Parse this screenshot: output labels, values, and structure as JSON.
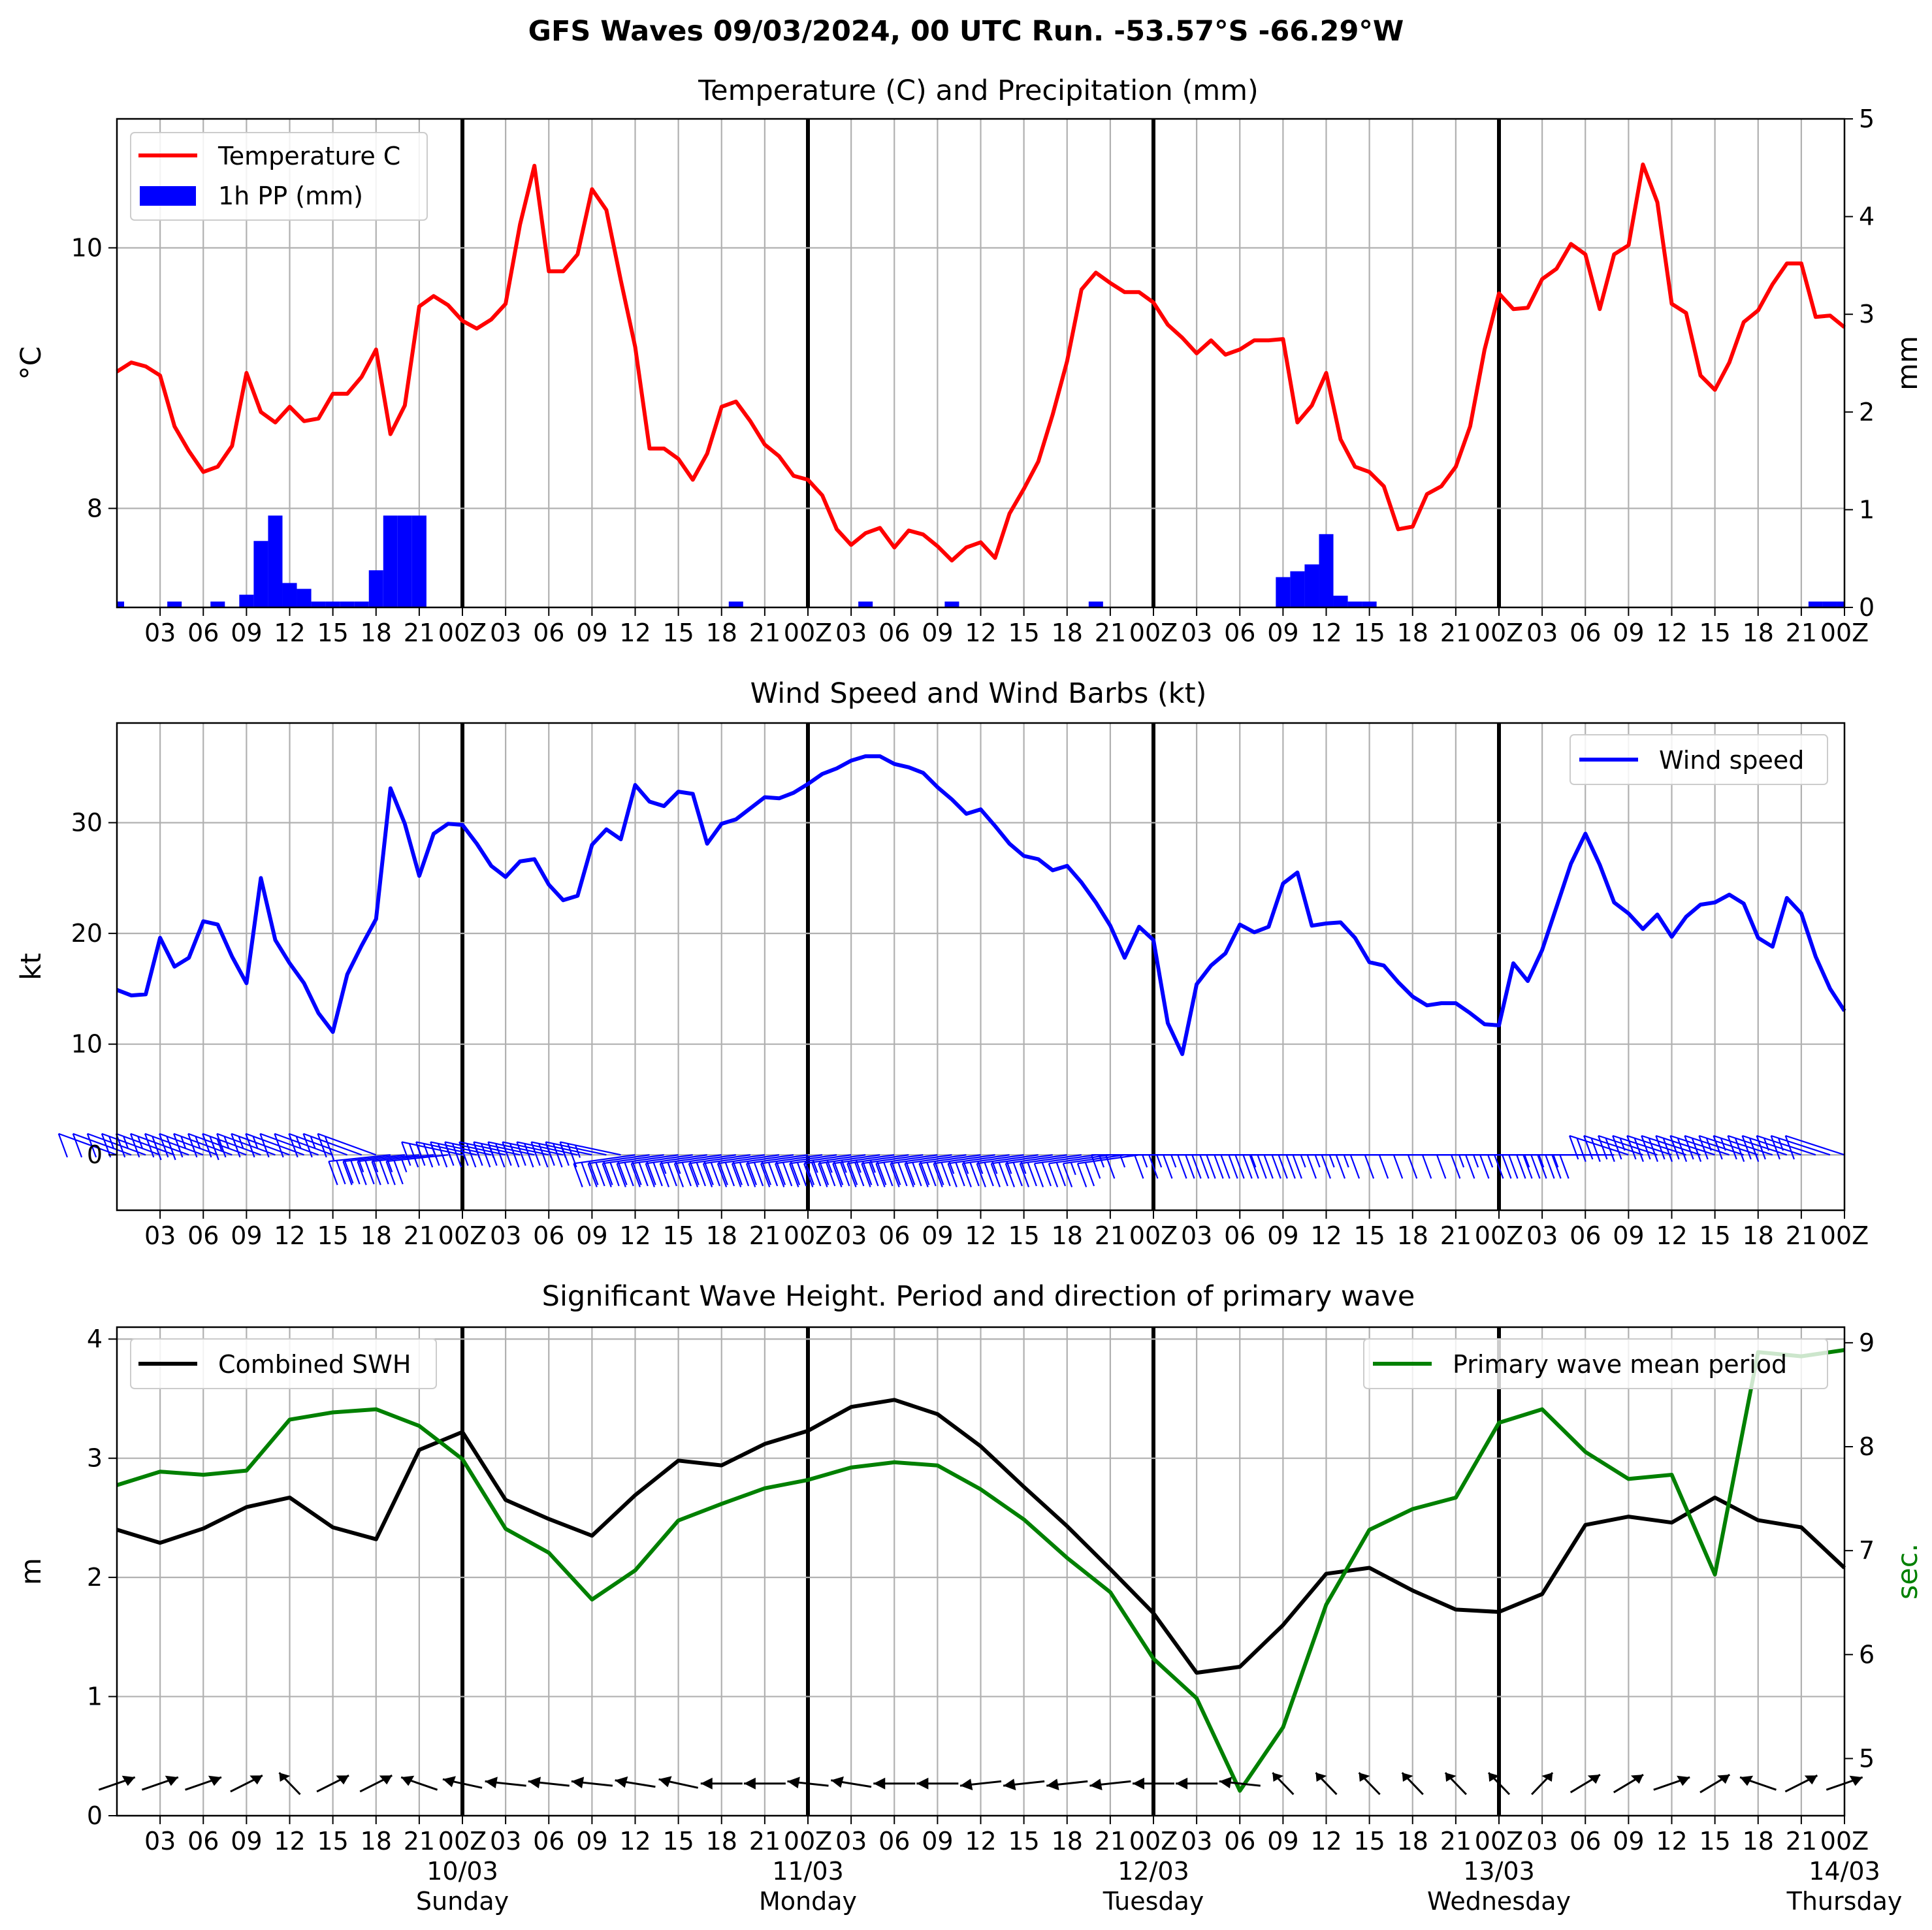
{
  "suptitle": "GFS Waves 09/03/2024, 00 UTC Run. -53.57°S -66.29°W",
  "colors": {
    "temperature": "#ff0000",
    "precip": "#0000ff",
    "wind": "#0000ff",
    "swh": "#000000",
    "period": "#008000",
    "grid": "#b0b0b0"
  },
  "time_axis": {
    "tick_labels": [
      "03",
      "06",
      "09",
      "12",
      "15",
      "18",
      "21",
      "00Z",
      "03",
      "06",
      "09",
      "12",
      "15",
      "18",
      "21",
      "00Z",
      "03",
      "06",
      "09",
      "12",
      "15",
      "18",
      "21",
      "00Z",
      "03",
      "06",
      "09",
      "12",
      "15",
      "18",
      "21",
      "00Z",
      "03",
      "06",
      "09",
      "12",
      "15",
      "18",
      "21",
      "00Z"
    ],
    "day_labels": [
      {
        "date": "10/03",
        "day": "Sunday"
      },
      {
        "date": "11/03",
        "day": "Monday"
      },
      {
        "date": "12/03",
        "day": "Tuesday"
      },
      {
        "date": "13/03",
        "day": "Wednesday"
      },
      {
        "date": "14/03",
        "day": "Thursday"
      }
    ]
  },
  "chart_data": [
    {
      "type": "line",
      "title": "Temperature (C) and Precipitation (mm)",
      "x_unit": "hours from 09/03/2024 00 UTC",
      "xlim": [
        0,
        120
      ],
      "ylabel": "$^\\circ$C",
      "y2label": "mm",
      "ylim": [
        7.24,
        10.99
      ],
      "yticks": [
        8,
        10
      ],
      "y2lim": [
        0,
        5
      ],
      "y2ticks": [
        0,
        1,
        2,
        3,
        4,
        5
      ],
      "grid": true,
      "legend": {
        "placement": "top-left",
        "entries": [
          "Temperature C",
          "1h PP (mm)"
        ]
      },
      "series": [
        {
          "name": "Temperature C",
          "axis": "left",
          "x": [
            0,
            1,
            2,
            3,
            4,
            5,
            6,
            7,
            8,
            9,
            10,
            11,
            12,
            13,
            14,
            15,
            16,
            17,
            18,
            19,
            20,
            21,
            22,
            23,
            24,
            25,
            26,
            27,
            28,
            29,
            30,
            31,
            32,
            33,
            34,
            35,
            36,
            37,
            38,
            39,
            40,
            41,
            42,
            43,
            44,
            45,
            46,
            47,
            48,
            49,
            50,
            51,
            52,
            53,
            54,
            55,
            56,
            57,
            58,
            59,
            60,
            61,
            62,
            63,
            64,
            65,
            66,
            67,
            68,
            69,
            70,
            71,
            72,
            73,
            74,
            75,
            76,
            77,
            78,
            79,
            80,
            81,
            82,
            83,
            84,
            85,
            86,
            87,
            88,
            89,
            90,
            91,
            92,
            93,
            94,
            95,
            96,
            97,
            98,
            99,
            100,
            101,
            102,
            103,
            104,
            105,
            106,
            107,
            108,
            109,
            110,
            111,
            112,
            113,
            114,
            115,
            116,
            117,
            118,
            119,
            120
          ],
          "values": [
            9.05,
            9.12,
            9.09,
            9.02,
            8.63,
            8.44,
            8.28,
            8.32,
            8.48,
            9.04,
            8.74,
            8.66,
            8.78,
            8.67,
            8.69,
            8.88,
            8.88,
            9.01,
            9.22,
            8.57,
            8.79,
            9.55,
            9.63,
            9.56,
            9.44,
            9.38,
            9.45,
            9.57,
            10.18,
            10.63,
            9.82,
            9.82,
            9.95,
            10.45,
            10.29,
            9.75,
            9.24,
            8.46,
            8.46,
            8.38,
            8.22,
            8.42,
            8.78,
            8.82,
            8.67,
            8.49,
            8.4,
            8.25,
            8.22,
            8.1,
            7.84,
            7.72,
            7.81,
            7.85,
            7.7,
            7.83,
            7.8,
            7.71,
            7.6,
            7.7,
            7.74,
            7.62,
            7.96,
            8.15,
            8.36,
            8.72,
            9.13,
            9.68,
            9.81,
            9.73,
            9.66,
            9.66,
            9.58,
            9.41,
            9.31,
            9.19,
            9.29,
            9.18,
            9.22,
            9.29,
            9.29,
            9.3,
            8.66,
            8.79,
            9.04,
            8.53,
            8.32,
            8.28,
            8.17,
            7.84,
            7.86,
            8.11,
            8.17,
            8.32,
            8.63,
            9.22,
            9.65,
            9.53,
            9.54,
            9.76,
            9.84,
            10.03,
            9.95,
            9.53,
            9.95,
            10.02,
            10.64,
            10.35,
            9.57,
            9.5,
            9.02,
            8.91,
            9.12,
            9.43,
            9.52,
            9.72,
            9.88,
            9.88,
            9.47,
            9.48,
            9.39
          ]
        },
        {
          "name": "1h PP (mm)",
          "type": "bar",
          "axis": "right",
          "x": [
            0,
            4,
            7,
            9,
            10,
            11,
            12,
            13,
            14,
            15,
            16,
            17,
            18,
            19,
            20,
            21,
            43,
            52,
            58,
            68,
            81,
            82,
            83,
            84,
            85,
            86,
            87,
            118,
            119,
            120
          ],
          "values": [
            0.06,
            0.06,
            0.06,
            0.13,
            0.68,
            0.94,
            0.25,
            0.19,
            0.06,
            0.06,
            0.06,
            0.06,
            0.38,
            0.94,
            0.94,
            0.94,
            0.06,
            0.06,
            0.06,
            0.06,
            0.31,
            0.37,
            0.44,
            0.75,
            0.12,
            0.06,
            0.06,
            0.06,
            0.06,
            0.06
          ]
        }
      ]
    },
    {
      "type": "line",
      "title": "Wind Speed and Wind Barbs (kt)",
      "x_unit": "hours from 09/03/2024 00 UTC",
      "xlim": [
        0,
        120
      ],
      "ylabel": "kt",
      "ylim": [
        -5,
        39
      ],
      "yticks": [
        0,
        10,
        20,
        30
      ],
      "grid": true,
      "legend": {
        "placement": "top-right",
        "entries": [
          "Wind speed"
        ]
      },
      "series": [
        {
          "name": "Wind speed",
          "x": [
            0,
            1,
            2,
            3,
            4,
            5,
            6,
            7,
            8,
            9,
            10,
            11,
            12,
            13,
            14,
            15,
            16,
            17,
            18,
            19,
            20,
            21,
            22,
            23,
            24,
            25,
            26,
            27,
            28,
            29,
            30,
            31,
            32,
            33,
            34,
            35,
            36,
            37,
            38,
            39,
            40,
            41,
            42,
            43,
            44,
            45,
            46,
            47,
            48,
            49,
            50,
            51,
            52,
            53,
            54,
            55,
            56,
            57,
            58,
            59,
            60,
            61,
            62,
            63,
            64,
            65,
            66,
            67,
            68,
            69,
            70,
            71,
            72,
            73,
            74,
            75,
            76,
            77,
            78,
            79,
            80,
            81,
            82,
            83,
            84,
            85,
            86,
            87,
            88,
            89,
            90,
            91,
            92,
            93,
            94,
            95,
            96,
            97,
            98,
            99,
            100,
            101,
            102,
            103,
            104,
            105,
            106,
            107,
            108,
            109,
            110,
            111,
            112,
            113,
            114,
            115,
            116,
            117,
            118,
            119,
            120
          ],
          "values": [
            14.9,
            14.4,
            14.5,
            19.6,
            17,
            17.8,
            21.1,
            20.8,
            17.9,
            15.5,
            25,
            19.4,
            17.3,
            15.5,
            12.8,
            11.1,
            16.3,
            18.9,
            21.3,
            33.1,
            29.9,
            25.2,
            29,
            29.9,
            29.8,
            28.1,
            26.1,
            25.1,
            26.5,
            26.7,
            24.4,
            23,
            23.4,
            28,
            29.4,
            28.5,
            33.4,
            31.9,
            31.5,
            32.8,
            32.6,
            28.1,
            29.9,
            30.3,
            31.3,
            32.3,
            32.2,
            32.7,
            33.5,
            34.4,
            34.9,
            35.6,
            36,
            36,
            35.3,
            35,
            34.5,
            33.2,
            32.1,
            30.8,
            31.2,
            29.7,
            28.1,
            27,
            26.7,
            25.7,
            26.1,
            24.6,
            22.8,
            20.7,
            17.8,
            20.6,
            19.4,
            11.9,
            9.1,
            15.4,
            17.1,
            18.2,
            20.8,
            20.1,
            20.6,
            24.5,
            25.5,
            20.7,
            20.9,
            21,
            19.6,
            17.4,
            17.1,
            15.6,
            14.3,
            13.5,
            13.7,
            13.7,
            12.8,
            11.8,
            11.7,
            17.3,
            15.7,
            18.5,
            22.4,
            26.3,
            29,
            26.2,
            22.8,
            21.8,
            20.4,
            21.7,
            19.7,
            21.5,
            22.6,
            22.8,
            23.5,
            22.7,
            19.6,
            18.8,
            23.2,
            21.8,
            17.9,
            15,
            13
          ]
        }
      ],
      "barbs": {
        "x": [
          0,
          1,
          2,
          3,
          4,
          5,
          6,
          7,
          8,
          9,
          10,
          11,
          12,
          13,
          14,
          15,
          16,
          17,
          18,
          19,
          20,
          21,
          22,
          23,
          24,
          25,
          26,
          27,
          28,
          29,
          30,
          31,
          32,
          33,
          34,
          35,
          36,
          37,
          38,
          39,
          40,
          41,
          42,
          43,
          44,
          45,
          46,
          47,
          48,
          49,
          50,
          51,
          52,
          53,
          54,
          55,
          56,
          57,
          58,
          59,
          60,
          61,
          62,
          63,
          64,
          65,
          66,
          67,
          68,
          69,
          70,
          71,
          72,
          73,
          74,
          75,
          76,
          77,
          78,
          79,
          80,
          81,
          82,
          83,
          84,
          85,
          86,
          87,
          88,
          89,
          90,
          91,
          92,
          93,
          94,
          95,
          96,
          97,
          98,
          99,
          100,
          101,
          102,
          103,
          104,
          105,
          106,
          107,
          108,
          109,
          110,
          111,
          112,
          113,
          114,
          115,
          116,
          117,
          118,
          119,
          120
        ],
        "style": "southern-hemisphere barbs on the zero line; direction mostly westerly, shifting to north-westerly on 10/03-11/03"
      }
    },
    {
      "type": "line",
      "title": "Significant Wave Height. Period and direction of primary wave",
      "x_unit": "hours from 09/03/2024 00 UTC",
      "xlim": [
        0,
        120
      ],
      "ylabel": "m",
      "y2label": "sec.",
      "ylim": [
        0,
        4.1
      ],
      "yticks": [
        0,
        1,
        2,
        3,
        4
      ],
      "y2lim": [
        4.45,
        9.15
      ],
      "y2ticks": [
        5,
        6,
        7,
        8,
        9
      ],
      "grid": true,
      "legend": {
        "placement": "top-left and top-right",
        "entries": [
          "Combined SWH",
          "Primary wave mean period"
        ]
      },
      "series": [
        {
          "name": "Combined SWH",
          "axis": "left",
          "x": [
            0,
            3,
            6,
            9,
            12,
            15,
            18,
            21,
            24,
            27,
            30,
            33,
            36,
            39,
            42,
            45,
            48,
            51,
            54,
            57,
            60,
            63,
            66,
            69,
            72,
            75,
            78,
            81,
            84,
            87,
            90,
            93,
            96,
            99,
            102,
            105,
            108,
            111,
            114,
            117,
            120
          ],
          "values": [
            2.4,
            2.29,
            2.41,
            2.59,
            2.67,
            2.42,
            2.32,
            3.07,
            3.22,
            2.65,
            2.49,
            2.35,
            2.69,
            2.98,
            2.94,
            3.12,
            3.23,
            3.43,
            3.49,
            3.37,
            3.1,
            2.76,
            2.43,
            2.07,
            1.7,
            1.2,
            1.25,
            1.6,
            2.03,
            2.08,
            1.89,
            1.73,
            1.71,
            1.86,
            2.44,
            2.51,
            2.46,
            2.67,
            2.48,
            2.42,
            2.08
          ]
        },
        {
          "name": "Primary wave mean period",
          "axis": "right",
          "x": [
            0,
            3,
            6,
            9,
            12,
            15,
            18,
            21,
            24,
            27,
            30,
            33,
            36,
            39,
            42,
            45,
            48,
            51,
            54,
            57,
            60,
            63,
            66,
            69,
            72,
            75,
            78,
            81,
            84,
            87,
            90,
            93,
            96,
            99,
            102,
            105,
            108,
            111,
            114,
            117,
            120
          ],
          "values": [
            7.63,
            7.76,
            7.73,
            7.77,
            8.26,
            8.33,
            8.36,
            8.2,
            7.88,
            7.21,
            6.98,
            6.53,
            6.81,
            7.29,
            7.45,
            7.6,
            7.68,
            7.8,
            7.85,
            7.82,
            7.59,
            7.3,
            6.93,
            6.6,
            5.96,
            5.58,
            4.69,
            5.3,
            6.48,
            7.2,
            7.4,
            7.51,
            8.23,
            8.36,
            7.95,
            7.69,
            7.73,
            6.77,
            8.91,
            8.87,
            8.93
          ]
        }
      ],
      "direction_arrows": {
        "x": [
          0,
          3,
          6,
          9,
          12,
          15,
          18,
          21,
          24,
          27,
          30,
          33,
          36,
          39,
          42,
          45,
          48,
          51,
          54,
          57,
          60,
          63,
          66,
          69,
          72,
          75,
          78,
          81,
          84,
          87,
          90,
          93,
          96,
          99,
          102,
          105,
          108,
          111,
          114,
          117,
          120
        ],
        "bearing_deg": [
          60,
          60,
          60,
          50,
          330,
          50,
          50,
          300,
          290,
          280,
          280,
          280,
          285,
          290,
          270,
          270,
          280,
          285,
          270,
          270,
          260,
          260,
          260,
          260,
          270,
          270,
          280,
          330,
          330,
          330,
          330,
          330,
          330,
          30,
          45,
          45,
          60,
          45,
          300,
          50,
          60
        ]
      }
    }
  ]
}
